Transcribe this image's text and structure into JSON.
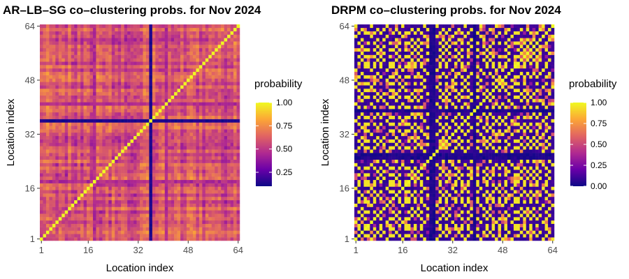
{
  "chart_data": [
    {
      "type": "heatmap",
      "title": "AR–LB–SG co–clustering probs. for Nov 2024",
      "xlabel": "Location index",
      "ylabel": "Location index",
      "xlim": [
        1,
        64
      ],
      "ylim": [
        1,
        64
      ],
      "xticks": [
        "1",
        "16",
        "32",
        "48",
        "64"
      ],
      "yticks": [
        "1",
        "16",
        "32",
        "48",
        "64"
      ],
      "tick_values": [
        1,
        16,
        32,
        48,
        64
      ],
      "grid": true,
      "n_locations": 64,
      "legend": {
        "title": "probability",
        "position": "right",
        "range": [
          0.1,
          1.0
        ],
        "labels": [
          "0.25",
          "0.50",
          "0.75",
          "1.00"
        ],
        "label_values": [
          0.25,
          0.5,
          0.75,
          1.0
        ]
      },
      "colormap": [
        "#0d0887",
        "#6a00a8",
        "#b12a90",
        "#e16462",
        "#fca636",
        "#f0f921"
      ],
      "description_values": {
        "diagonal": 1.0,
        "typical_offdiagonal": 0.6,
        "isolated_location": 36,
        "isolated_value": 0.1,
        "partially_isolated_locations": [
          18,
          41
        ],
        "partially_isolated_value": 0.4
      }
    },
    {
      "type": "heatmap",
      "title": "DRPM co–clustering probs. for Nov 2024",
      "xlabel": "Location index",
      "ylabel": "Location index",
      "xlim": [
        1,
        64
      ],
      "ylim": [
        1,
        64
      ],
      "xticks": [
        "1",
        "16",
        "32",
        "48",
        "64"
      ],
      "yticks": [
        "1",
        "16",
        "32",
        "48",
        "64"
      ],
      "tick_values": [
        1,
        16,
        32,
        48,
        64
      ],
      "grid": true,
      "n_locations": 64,
      "legend": {
        "title": "probability",
        "position": "right",
        "range": [
          0.0,
          1.0
        ],
        "labels": [
          "0.00",
          "0.25",
          "0.50",
          "0.75",
          "1.00"
        ],
        "label_values": [
          0.0,
          0.25,
          0.5,
          0.75,
          1.0
        ]
      },
      "colormap": [
        "#0d0887",
        "#6a00a8",
        "#b12a90",
        "#e16462",
        "#fca636",
        "#f0f921"
      ],
      "description_values": {
        "diagonal": 1.0,
        "cluster_a_locations": [
          2,
          4,
          5,
          7,
          9,
          12,
          13,
          15,
          17,
          18,
          20,
          22,
          26,
          28,
          30,
          33,
          35,
          37,
          40,
          43,
          45,
          47,
          49,
          52,
          53,
          55,
          57,
          59,
          62
        ],
        "cluster_b_locations": [
          3,
          8,
          10,
          14,
          19,
          21,
          24,
          29,
          31,
          34,
          38,
          42,
          44,
          50,
          54,
          56,
          58,
          60,
          63
        ],
        "isolated_locations": [
          25,
          26,
          39
        ],
        "within_cluster_value": 0.95,
        "between_cluster_value": 0.05
      }
    }
  ]
}
